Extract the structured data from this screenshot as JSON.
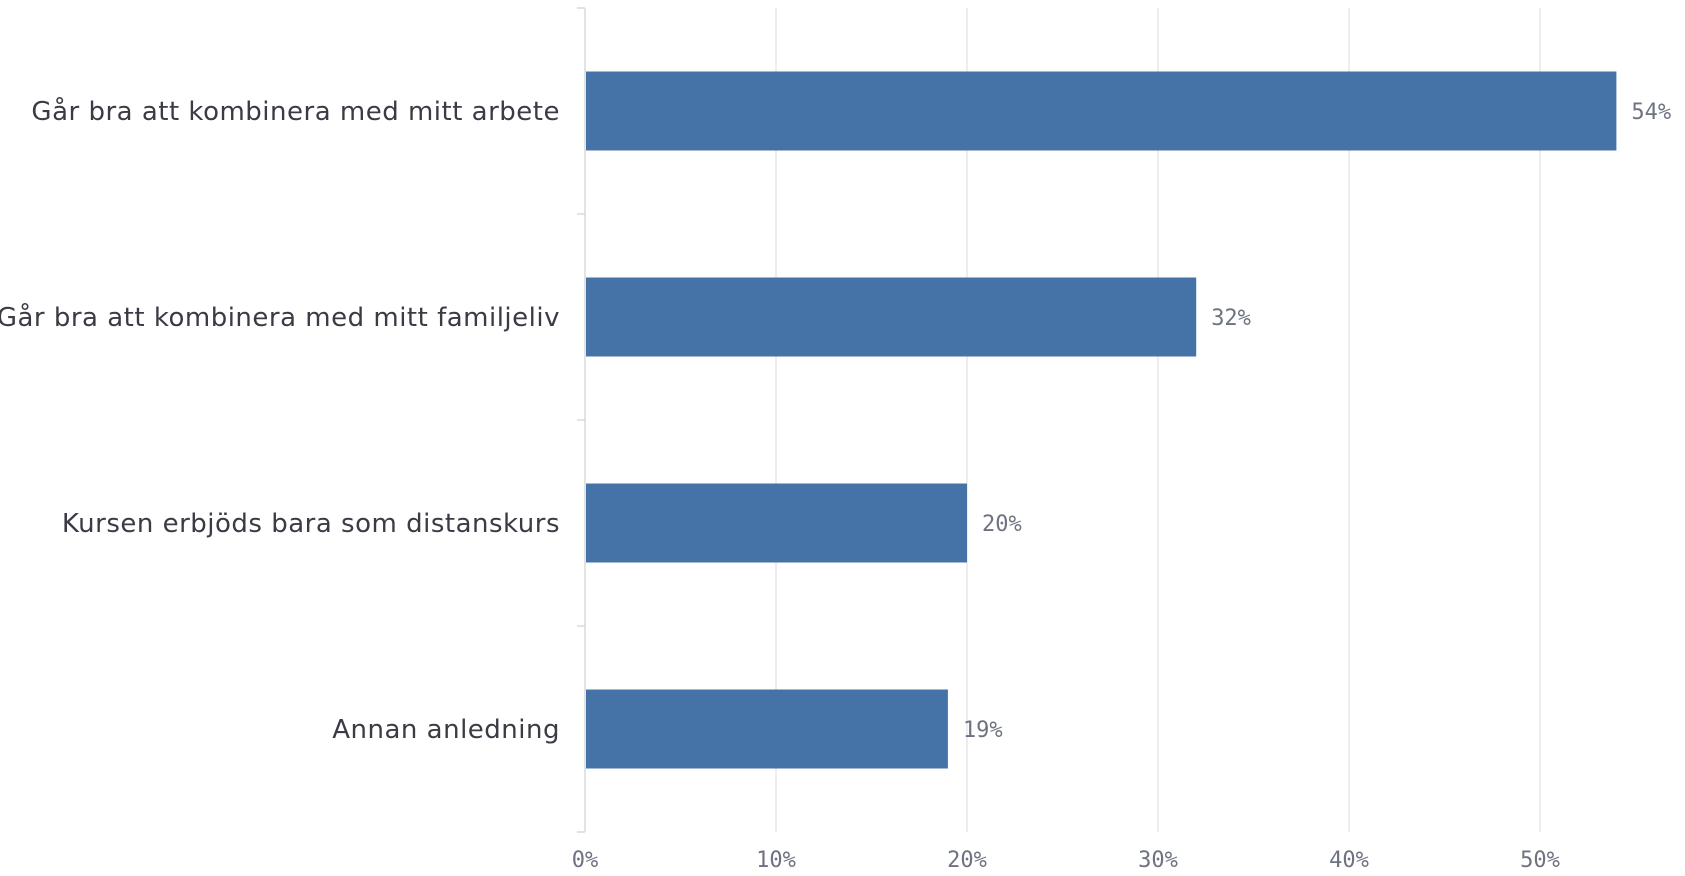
{
  "chart_data": {
    "type": "bar",
    "orientation": "horizontal",
    "categories": [
      "Går bra att kombinera med mitt arbete",
      "Går bra att kombinera med mitt familjeliv",
      "Kursen erbjöds bara som distanskurs",
      "Annan anledning"
    ],
    "values": [
      54,
      32,
      20,
      19
    ],
    "value_labels": [
      "54%",
      "32%",
      "20%",
      "19%"
    ],
    "x_ticks": [
      0,
      10,
      20,
      30,
      40,
      50
    ],
    "x_tick_labels": [
      "0%",
      "10%",
      "20%",
      "30%",
      "40%",
      "50%"
    ],
    "xlim": [
      0,
      57.5
    ],
    "grid": true,
    "bar_color": "#4572a7",
    "title": "",
    "xlabel": "",
    "ylabel": ""
  }
}
